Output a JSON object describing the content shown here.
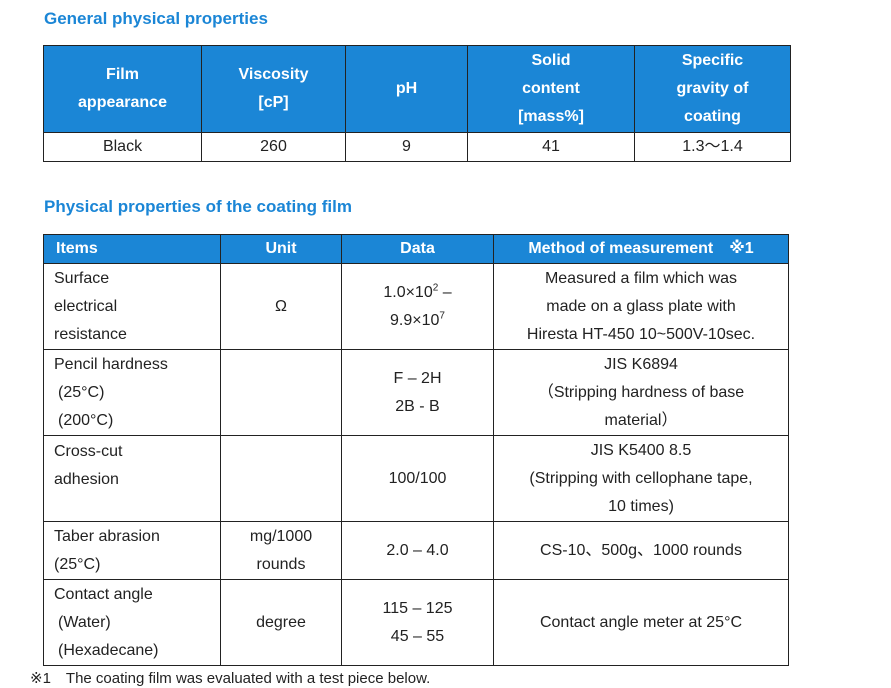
{
  "general": {
    "title": "General physical properties",
    "headers": [
      [
        "Film",
        "appearance"
      ],
      [
        "Viscosity",
        "[cP]"
      ],
      [
        "pH"
      ],
      [
        "Solid",
        "content",
        "[mass%]"
      ],
      [
        "Specific",
        "gravity of",
        "coating"
      ]
    ],
    "row": [
      "Black",
      "260",
      "9",
      "41",
      "1.3～1.4"
    ]
  },
  "film": {
    "title": "Physical properties of the coating film",
    "headers": {
      "items": "Items",
      "unit": "Unit",
      "data": "Data",
      "method": "Method of measurement　※1"
    },
    "rows": [
      {
        "item": [
          "Surface",
          "electrical",
          "resistance"
        ],
        "unit": [
          "Ω"
        ],
        "data_a_base": "1.0×10",
        "data_a_exp": "2",
        "data_a_suffix": " –",
        "data_b_base": "9.9×10",
        "data_b_exp": "7",
        "method": [
          "Measured a film which was",
          "made on a glass plate with",
          "Hiresta HT-450 10~500V-10sec."
        ]
      },
      {
        "item": [
          "Pencil hardness",
          " (25°C)",
          " (200°C)"
        ],
        "unit": [
          ""
        ],
        "data": [
          "F – 2H",
          "2B - B"
        ],
        "method": [
          "JIS K6894",
          "（Stripping hardness of base",
          "material）"
        ]
      },
      {
        "item": [
          "Cross-cut",
          "adhesion"
        ],
        "unit": [
          ""
        ],
        "data": [
          "100/100"
        ],
        "method": [
          "JIS K5400 8.5",
          "(Stripping with cellophane tape,",
          "10 times)"
        ]
      },
      {
        "item": [
          "Taber abrasion",
          "(25°C)"
        ],
        "unit": [
          "mg/1000",
          "rounds"
        ],
        "data": [
          "2.0 – 4.0"
        ],
        "method": [
          "CS-10、500g、1000 rounds"
        ]
      },
      {
        "item": [
          "Contact angle",
          " (Water)",
          " (Hexadecane)"
        ],
        "unit": [
          "degree"
        ],
        "data": [
          "115 – 125",
          "45 – 55"
        ],
        "method": [
          "Contact angle meter at 25°C"
        ]
      }
    ]
  },
  "footnote": "※1　The coating film was evaluated with a test piece below."
}
